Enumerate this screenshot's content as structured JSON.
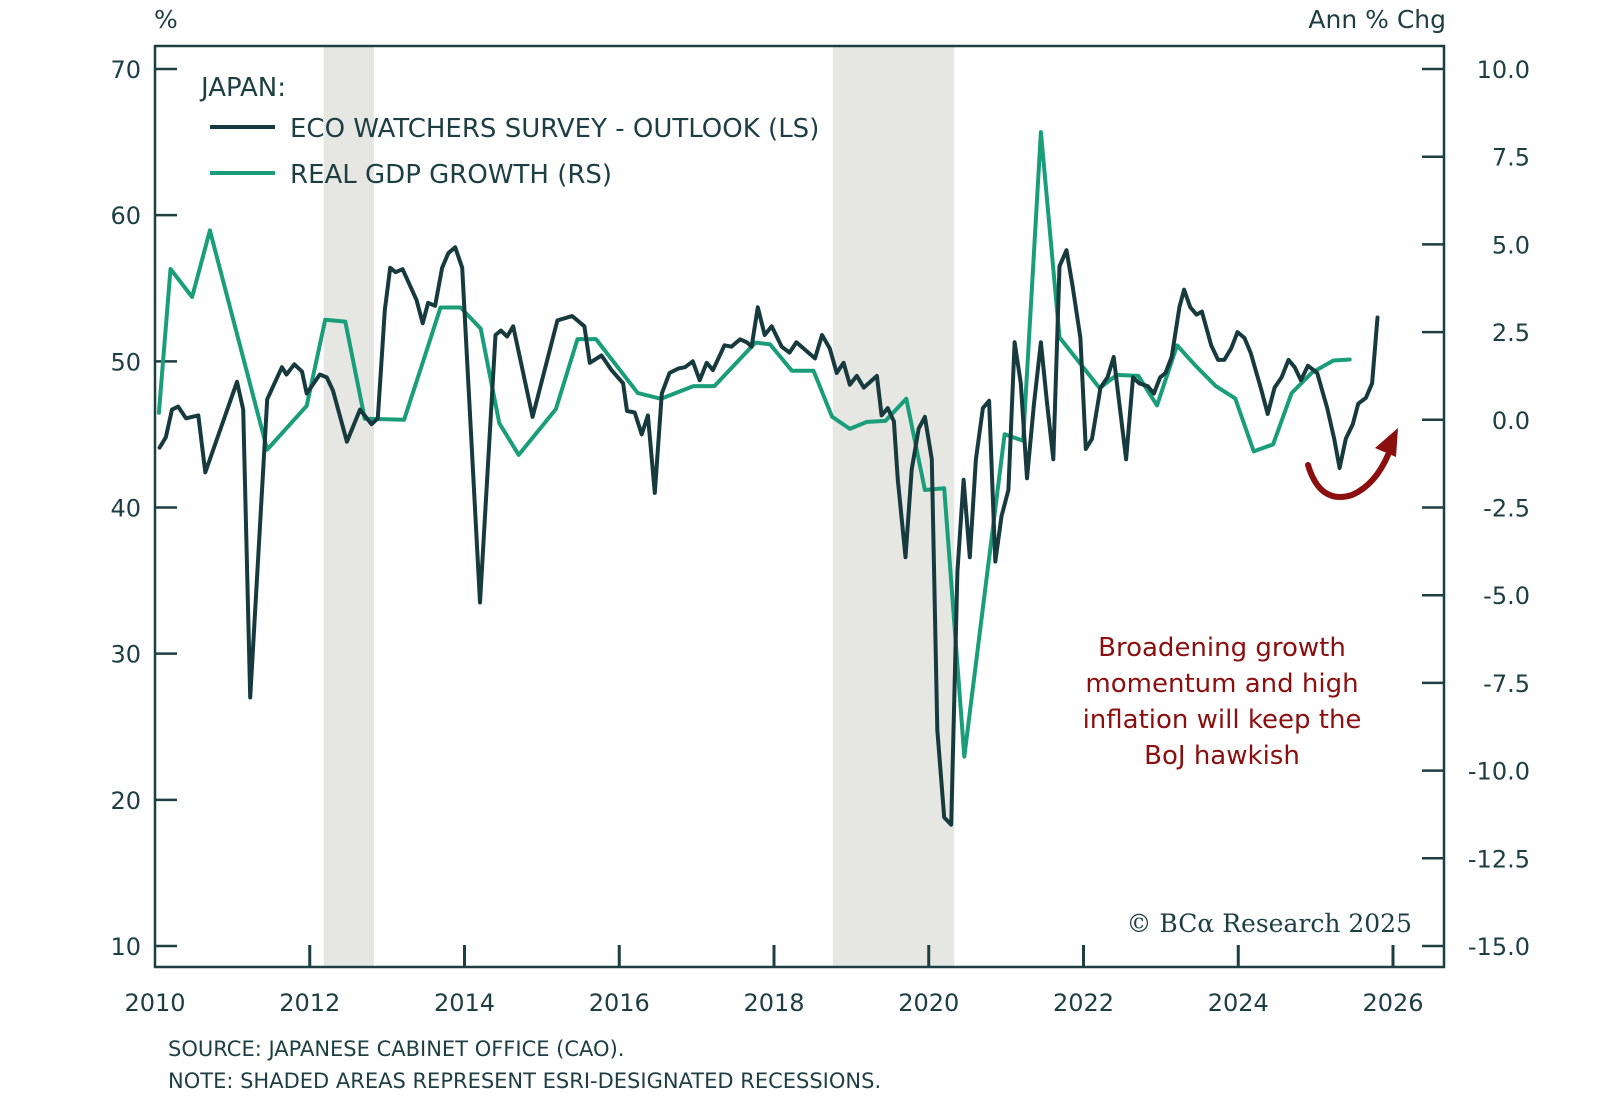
{
  "colors": {
    "axis": "#1d3e42",
    "eco": "#163a3e",
    "gdp": "#1a9e7a",
    "recession": "#e6e7e3",
    "annotation": "#8b0f0f"
  },
  "chart_data": {
    "type": "line",
    "title": "JAPAN:",
    "left_axis_unit": "%",
    "right_axis_unit": "Ann % Chg",
    "xlim": [
      2010,
      2026
    ],
    "ylim_left": [
      10,
      70
    ],
    "ylim_right": [
      -15,
      10
    ],
    "x_ticks": [
      2010,
      2012,
      2014,
      2016,
      2018,
      2020,
      2022,
      2024,
      2026
    ],
    "x_tick_labels": [
      "2010",
      "2012",
      "2014",
      "2016",
      "2018",
      "2020",
      "2022",
      "2024",
      "2026"
    ],
    "left_ticks": [
      70,
      60,
      50,
      40,
      30,
      20,
      10
    ],
    "left_tick_labels": [
      "70",
      "60",
      "50",
      "40",
      "30",
      "20",
      "10"
    ],
    "right_ticks": [
      10,
      7.5,
      5,
      2.5,
      0,
      -2.5,
      -5,
      -7.5,
      -10,
      -12.5,
      -15
    ],
    "right_tick_labels": [
      "10.0",
      "7.5",
      "5.0",
      "2.5",
      "0.0",
      "-2.5",
      "-5.0",
      "-7.5",
      "-10.0",
      "-12.5",
      "-15.0"
    ],
    "grid": false,
    "legend_position": "top-left",
    "recessions": [
      {
        "start": 2012.18,
        "end": 2012.83
      },
      {
        "start": 2018.76,
        "end": 2020.33
      }
    ],
    "series": [
      {
        "name": "ECO WATCHERS SURVEY - OUTLOOK (LS)",
        "axis": "left",
        "points": [
          [
            2010.06,
            44.1
          ],
          [
            2010.14,
            44.8
          ],
          [
            2010.22,
            46.7
          ],
          [
            2010.3,
            46.9
          ],
          [
            2010.4,
            46.1
          ],
          [
            2010.56,
            46.3
          ],
          [
            2010.65,
            42.4
          ],
          [
            2011.06,
            48.6
          ],
          [
            2011.14,
            46.7
          ],
          [
            2011.23,
            27.0
          ],
          [
            2011.45,
            47.4
          ],
          [
            2011.64,
            49.6
          ],
          [
            2011.7,
            49.1
          ],
          [
            2011.8,
            49.8
          ],
          [
            2011.9,
            49.3
          ],
          [
            2011.96,
            47.8
          ],
          [
            2012.13,
            49.1
          ],
          [
            2012.22,
            48.9
          ],
          [
            2012.3,
            48.0
          ],
          [
            2012.48,
            44.5
          ],
          [
            2012.65,
            46.7
          ],
          [
            2012.8,
            45.7
          ],
          [
            2012.88,
            46.1
          ],
          [
            2012.97,
            53.5
          ],
          [
            2013.04,
            56.4
          ],
          [
            2013.11,
            56.1
          ],
          [
            2013.2,
            56.3
          ],
          [
            2013.38,
            54.2
          ],
          [
            2013.46,
            52.6
          ],
          [
            2013.53,
            54.0
          ],
          [
            2013.62,
            53.8
          ],
          [
            2013.71,
            56.4
          ],
          [
            2013.79,
            57.4
          ],
          [
            2013.88,
            57.8
          ],
          [
            2013.97,
            56.4
          ],
          [
            2014.2,
            33.5
          ],
          [
            2014.4,
            51.8
          ],
          [
            2014.47,
            52.1
          ],
          [
            2014.55,
            51.7
          ],
          [
            2014.63,
            52.4
          ],
          [
            2014.88,
            46.2
          ],
          [
            2015.2,
            52.8
          ],
          [
            2015.39,
            53.1
          ],
          [
            2015.55,
            52.4
          ],
          [
            2015.62,
            49.9
          ],
          [
            2015.77,
            50.4
          ],
          [
            2015.9,
            49.4
          ],
          [
            2016.05,
            48.5
          ],
          [
            2016.1,
            46.6
          ],
          [
            2016.2,
            46.5
          ],
          [
            2016.29,
            45.0
          ],
          [
            2016.37,
            46.3
          ],
          [
            2016.46,
            41.0
          ],
          [
            2016.55,
            47.8
          ],
          [
            2016.65,
            49.2
          ],
          [
            2016.76,
            49.5
          ],
          [
            2016.85,
            49.6
          ],
          [
            2016.95,
            50.0
          ],
          [
            2017.04,
            48.7
          ],
          [
            2017.13,
            49.9
          ],
          [
            2017.21,
            49.4
          ],
          [
            2017.36,
            51.1
          ],
          [
            2017.45,
            51.0
          ],
          [
            2017.56,
            51.5
          ],
          [
            2017.65,
            51.3
          ],
          [
            2017.71,
            51.0
          ],
          [
            2017.79,
            53.7
          ],
          [
            2017.88,
            51.8
          ],
          [
            2017.97,
            52.4
          ],
          [
            2018.1,
            51.0
          ],
          [
            2018.2,
            50.6
          ],
          [
            2018.29,
            51.3
          ],
          [
            2018.53,
            50.2
          ],
          [
            2018.62,
            51.8
          ],
          [
            2018.72,
            50.9
          ],
          [
            2018.81,
            49.2
          ],
          [
            2018.9,
            49.9
          ],
          [
            2018.98,
            48.4
          ],
          [
            2019.07,
            49.0
          ],
          [
            2019.16,
            48.2
          ],
          [
            2019.33,
            49.0
          ],
          [
            2019.39,
            46.3
          ],
          [
            2019.47,
            46.8
          ],
          [
            2019.55,
            45.9
          ],
          [
            2019.6,
            41.9
          ],
          [
            2019.7,
            36.6
          ],
          [
            2019.78,
            42.6
          ],
          [
            2019.87,
            45.4
          ],
          [
            2019.95,
            46.2
          ],
          [
            2020.04,
            43.3
          ],
          [
            2020.11,
            24.8
          ],
          [
            2020.2,
            18.8
          ],
          [
            2020.29,
            18.3
          ],
          [
            2020.37,
            35.6
          ],
          [
            2020.45,
            41.9
          ],
          [
            2020.53,
            36.6
          ],
          [
            2020.61,
            43.3
          ],
          [
            2020.7,
            46.8
          ],
          [
            2020.78,
            47.3
          ],
          [
            2020.86,
            36.3
          ],
          [
            2020.94,
            39.4
          ],
          [
            2021.03,
            41.2
          ],
          [
            2021.11,
            51.3
          ],
          [
            2021.19,
            48.5
          ],
          [
            2021.27,
            42.0
          ],
          [
            2021.36,
            47.1
          ],
          [
            2021.45,
            51.3
          ],
          [
            2021.53,
            47.1
          ],
          [
            2021.61,
            43.3
          ],
          [
            2021.69,
            56.5
          ],
          [
            2021.78,
            57.6
          ],
          [
            2021.86,
            55.1
          ],
          [
            2021.96,
            51.6
          ],
          [
            2022.03,
            44.0
          ],
          [
            2022.11,
            44.7
          ],
          [
            2022.22,
            48.2
          ],
          [
            2022.31,
            48.9
          ],
          [
            2022.39,
            50.3
          ],
          [
            2022.47,
            46.8
          ],
          [
            2022.55,
            43.3
          ],
          [
            2022.64,
            48.9
          ],
          [
            2022.72,
            48.5
          ],
          [
            2022.83,
            48.3
          ],
          [
            2022.91,
            47.8
          ],
          [
            2022.99,
            48.9
          ],
          [
            2023.06,
            49.2
          ],
          [
            2023.14,
            50.3
          ],
          [
            2023.24,
            53.7
          ],
          [
            2023.3,
            54.9
          ],
          [
            2023.38,
            53.7
          ],
          [
            2023.46,
            53.2
          ],
          [
            2023.53,
            53.4
          ],
          [
            2023.65,
            51.1
          ],
          [
            2023.74,
            50.1
          ],
          [
            2023.82,
            50.1
          ],
          [
            2023.91,
            50.9
          ],
          [
            2023.99,
            52.0
          ],
          [
            2024.08,
            51.6
          ],
          [
            2024.16,
            50.6
          ],
          [
            2024.29,
            48.2
          ],
          [
            2024.38,
            46.4
          ],
          [
            2024.47,
            48.2
          ],
          [
            2024.56,
            48.9
          ],
          [
            2024.65,
            50.1
          ],
          [
            2024.73,
            49.6
          ],
          [
            2024.81,
            48.7
          ],
          [
            2024.9,
            49.7
          ],
          [
            2025.02,
            49.2
          ],
          [
            2025.15,
            46.8
          ],
          [
            2025.24,
            44.7
          ],
          [
            2025.31,
            42.7
          ],
          [
            2025.39,
            44.7
          ],
          [
            2025.48,
            45.7
          ],
          [
            2025.55,
            47.1
          ],
          [
            2025.65,
            47.5
          ],
          [
            2025.73,
            48.5
          ],
          [
            2025.8,
            53.0
          ]
        ]
      },
      {
        "name": "REAL GDP GROWTH (RS)",
        "axis": "right",
        "points": [
          [
            2010.05,
            0.2
          ],
          [
            2010.2,
            4.3
          ],
          [
            2010.48,
            3.5
          ],
          [
            2010.71,
            5.4
          ],
          [
            2011.45,
            -0.85
          ],
          [
            2011.96,
            0.4
          ],
          [
            2012.2,
            2.85
          ],
          [
            2012.46,
            2.8
          ],
          [
            2012.71,
            0.03
          ],
          [
            2013.22,
            0.0
          ],
          [
            2013.5,
            1.9
          ],
          [
            2013.69,
            3.2
          ],
          [
            2013.95,
            3.2
          ],
          [
            2014.21,
            2.6
          ],
          [
            2014.45,
            -0.1
          ],
          [
            2014.7,
            -1.0
          ],
          [
            2015.18,
            0.3
          ],
          [
            2015.46,
            2.3
          ],
          [
            2015.7,
            2.3
          ],
          [
            2016.24,
            0.76
          ],
          [
            2016.54,
            0.6
          ],
          [
            2016.96,
            0.96
          ],
          [
            2017.23,
            0.96
          ],
          [
            2017.76,
            2.2
          ],
          [
            2017.95,
            2.15
          ],
          [
            2018.23,
            1.4
          ],
          [
            2018.51,
            1.4
          ],
          [
            2018.75,
            0.09
          ],
          [
            2018.98,
            -0.26
          ],
          [
            2019.2,
            -0.06
          ],
          [
            2019.44,
            -0.03
          ],
          [
            2019.71,
            0.6
          ],
          [
            2019.95,
            -2.0
          ],
          [
            2020.2,
            -1.95
          ],
          [
            2020.46,
            -9.6
          ],
          [
            2020.98,
            -0.41
          ],
          [
            2021.22,
            -0.6
          ],
          [
            2021.45,
            8.2
          ],
          [
            2021.69,
            2.35
          ],
          [
            2022.21,
            0.9
          ],
          [
            2022.43,
            1.28
          ],
          [
            2022.71,
            1.25
          ],
          [
            2022.95,
            0.41
          ],
          [
            2023.21,
            2.12
          ],
          [
            2023.45,
            1.54
          ],
          [
            2023.71,
            0.96
          ],
          [
            2023.96,
            0.61
          ],
          [
            2024.2,
            -0.9
          ],
          [
            2024.45,
            -0.7
          ],
          [
            2024.69,
            0.76
          ],
          [
            2024.95,
            1.34
          ],
          [
            2025.23,
            1.69
          ],
          [
            2025.44,
            1.72
          ]
        ]
      }
    ],
    "annotations": [
      {
        "text_lines": [
          "Broadening growth",
          "momentum and high",
          "inflation will keep the",
          "BoJ hawkish"
        ]
      }
    ]
  },
  "legend": {
    "title": "JAPAN:",
    "items": [
      "ECO WATCHERS SURVEY - OUTLOOK (LS)",
      "REAL GDP GROWTH (RS)"
    ]
  },
  "annotation": {
    "lines": [
      "Broadening growth",
      "momentum and high",
      "inflation will keep the",
      "BoJ hawkish"
    ]
  },
  "copyright": "© BCα Research 2025",
  "footnotes": {
    "source": "SOURCE: JAPANESE CABINET OFFICE (CAO).",
    "note": "NOTE: SHADED AREAS REPRESENT ESRI-DESIGNATED RECESSIONS."
  },
  "axis_units": {
    "left": "%",
    "right": "Ann % Chg"
  }
}
